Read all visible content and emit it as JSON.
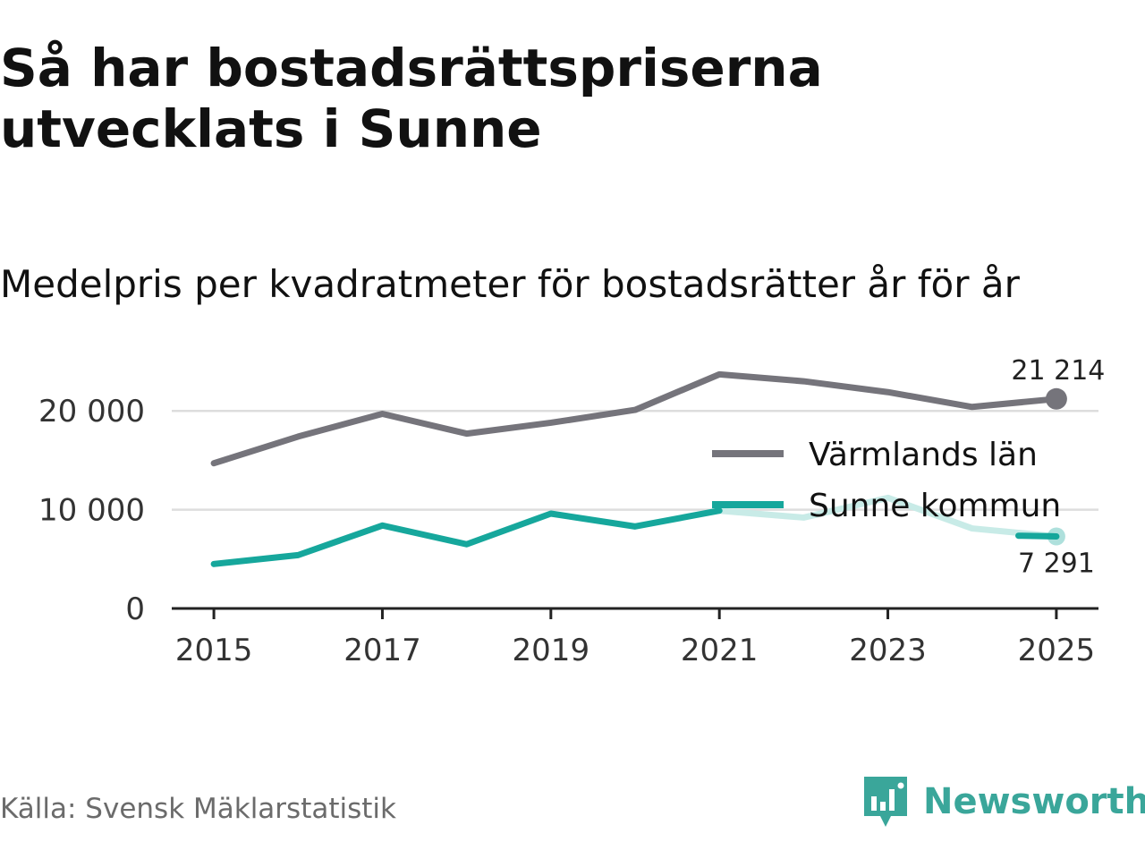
{
  "header": {
    "title": "Så har bostadsrättspriserna utvecklats i Sunne",
    "subtitle": "Medelpris per kvadratmeter för bostadsrätter år för år"
  },
  "footer": {
    "source": "Källa: Svensk Mäklarstatistik",
    "brand": "Newsworthy"
  },
  "colors": {
    "varmland": "#75747b",
    "sunne": "#16a79c",
    "sunne_faded": "#c8ebe7",
    "grid": "#dddddd",
    "axis": "#222222",
    "brand": "#3aa69a"
  },
  "icons": {
    "brand_logo": "newsworthy-logo-icon"
  },
  "chart_data": {
    "type": "line",
    "title": "Medelpris per kvadratmeter för bostadsrätter år för år",
    "xlabel": "",
    "ylabel": "",
    "x": [
      2015,
      2016,
      2017,
      2018,
      2019,
      2020,
      2021,
      2022,
      2023,
      2024,
      2025
    ],
    "xticks": [
      "2015",
      "2017",
      "2019",
      "2021",
      "2023",
      "2025"
    ],
    "yticks": [
      0,
      10000,
      20000
    ],
    "ytick_labels": [
      "0",
      "10 000",
      "20 000"
    ],
    "ylim": [
      0,
      25000
    ],
    "xlim": [
      2014.5,
      2025.5
    ],
    "grid": true,
    "legend_position": "right",
    "series": [
      {
        "name": "Värmlands län",
        "color": "#75747b",
        "values": [
          14700,
          17400,
          19700,
          17700,
          18800,
          20100,
          23700,
          23000,
          21900,
          20400,
          21214
        ],
        "end_label": "21 214"
      },
      {
        "name": "Sunne kommun",
        "color": "#16a79c",
        "faded_from": 2021,
        "values": [
          4500,
          5400,
          8400,
          6500,
          9600,
          8300,
          9900,
          9200,
          11200,
          8100,
          7291
        ],
        "end_label": "7 291"
      }
    ]
  }
}
